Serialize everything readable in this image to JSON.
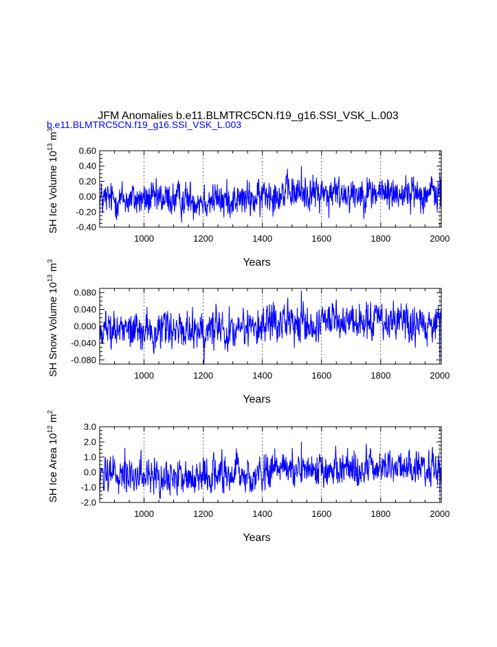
{
  "title": "JFM Anomalies b.e11.BLMTRC5CN.f19_g16.SSI_VSK_L.003",
  "subtitle": "b.e11.BLMTRC5CN.f19_g16.SSI_VSK_L.003",
  "colors": {
    "series": "#0000ff",
    "subtitle": "#0000ff",
    "axes": "#000000",
    "grid": "#000000"
  },
  "chart_data": [
    {
      "type": "line",
      "ylabel": {
        "base": "SH Ice Volume 10",
        "exp": "13",
        "unit": " m",
        "unit_exp": "3"
      },
      "xlabel": "Years",
      "xlim": [
        850,
        2005
      ],
      "ylim": [
        -0.4,
        0.6
      ],
      "yticks": [
        "0.60",
        "0.40",
        "0.20",
        "0.00",
        "-0.20",
        "-0.40"
      ],
      "ytick_values": [
        0.6,
        0.4,
        0.2,
        0.0,
        -0.2,
        -0.4
      ],
      "xticks": [
        "1000",
        "1200",
        "1400",
        "1600",
        "1800",
        "2000"
      ],
      "xtick_values": [
        1000,
        1200,
        1400,
        1600,
        1800,
        2000
      ],
      "grid": "vertical dashed at x ticks",
      "series": [
        {
          "x_range": [
            850,
            2005
          ],
          "typical_range": [
            -0.2,
            0.2
          ],
          "extremes": [
            {
              "year": 1532,
              "value": 0.4
            },
            {
              "year": 1625,
              "value": -0.28
            },
            {
              "year": 1270,
              "value": -0.27
            }
          ],
          "trend": "slightly negative around 850-1400, slightly positive after 1400"
        }
      ]
    },
    {
      "type": "line",
      "ylabel": {
        "base": "SH Snow Volume 10",
        "exp": "13",
        "unit": " m",
        "unit_exp": "3"
      },
      "xlabel": "Years",
      "xlim": [
        850,
        2005
      ],
      "ylim": [
        -0.09,
        0.09
      ],
      "yticks": [
        "0.080",
        "0.040",
        "0.000",
        "-0.040",
        "-0.080"
      ],
      "ytick_values": [
        0.08,
        0.04,
        0.0,
        -0.04,
        -0.08
      ],
      "xticks": [
        "1000",
        "1200",
        "1400",
        "1600",
        "1800",
        "2000"
      ],
      "xtick_values": [
        1000,
        1200,
        1400,
        1600,
        1800,
        2000
      ],
      "grid": "vertical dashed at x ticks",
      "series": [
        {
          "x_range": [
            850,
            2005
          ],
          "typical_range": [
            -0.04,
            0.04
          ],
          "extremes": [
            {
              "year": 1532,
              "value": 0.085
            },
            {
              "year": 1203,
              "value": -0.09
            },
            {
              "year": 2000,
              "value": -0.078
            }
          ],
          "trend": "slightly negative around 850-1400, slightly positive after 1400"
        }
      ]
    },
    {
      "type": "line",
      "ylabel": {
        "base": "SH Ice Area 10",
        "exp": "12",
        "unit": " m",
        "unit_exp": "2"
      },
      "xlabel": "Years",
      "xlim": [
        850,
        2005
      ],
      "ylim": [
        -2.0,
        3.0
      ],
      "yticks": [
        "3.0",
        "2.0",
        "1.0",
        "0.0",
        "-1.0",
        "-2.0"
      ],
      "ytick_values": [
        3.0,
        2.0,
        1.0,
        0.0,
        -1.0,
        -2.0
      ],
      "xticks": [
        "1000",
        "1200",
        "1400",
        "1600",
        "1800",
        "2000"
      ],
      "xtick_values": [
        1000,
        1200,
        1400,
        1600,
        1800,
        2000
      ],
      "grid": "vertical dashed at x ticks",
      "series": [
        {
          "x_range": [
            850,
            2005
          ],
          "typical_range": [
            -1.0,
            1.0
          ],
          "extremes": [
            {
              "year": 1532,
              "value": 2.0
            },
            {
              "year": 935,
              "value": 1.6
            },
            {
              "year": 1270,
              "value": -1.4
            },
            {
              "year": 2000,
              "value": -1.4
            }
          ],
          "trend": "slightly negative around 850-1400, slightly positive after 1400"
        }
      ]
    }
  ]
}
